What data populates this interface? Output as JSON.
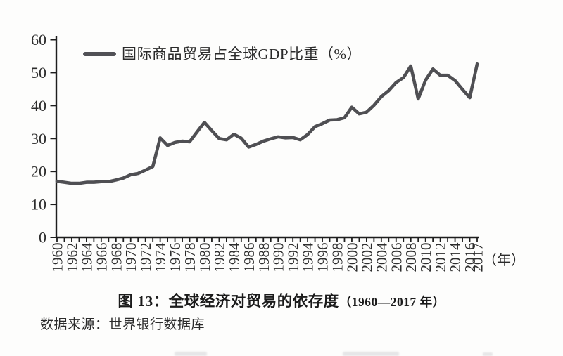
{
  "figure": {
    "legend_label": "国际商品贸易占全球GDP比重（%）",
    "x_axis_unit": "（年）",
    "caption_main": "图 13：全球经济对贸易的依存度",
    "caption_range": "（1960—2017 年）",
    "source": "数据来源：世界银行数据库"
  },
  "chart_data": {
    "type": "line",
    "title": "图 13：全球经济对贸易的依存度（1960—2017 年）",
    "series_name": "国际商品贸易占全球GDP比重（%）",
    "x": [
      1960,
      1961,
      1962,
      1963,
      1964,
      1965,
      1966,
      1967,
      1968,
      1969,
      1970,
      1971,
      1972,
      1973,
      1974,
      1975,
      1976,
      1977,
      1978,
      1979,
      1980,
      1981,
      1982,
      1983,
      1984,
      1985,
      1986,
      1987,
      1988,
      1989,
      1990,
      1991,
      1992,
      1993,
      1994,
      1995,
      1996,
      1997,
      1998,
      1999,
      2000,
      2001,
      2002,
      2003,
      2004,
      2005,
      2006,
      2007,
      2008,
      2009,
      2010,
      2011,
      2012,
      2013,
      2014,
      2015,
      2016,
      2017
    ],
    "values": [
      17.0,
      16.7,
      16.4,
      16.4,
      16.7,
      16.7,
      16.9,
      16.9,
      17.4,
      18.0,
      19.0,
      19.4,
      20.4,
      21.5,
      30.2,
      27.9,
      28.8,
      29.2,
      29.0,
      32.0,
      34.9,
      32.4,
      30.0,
      29.6,
      31.3,
      30.1,
      27.4,
      28.2,
      29.2,
      29.9,
      30.5,
      30.2,
      30.3,
      29.6,
      31.2,
      33.6,
      34.5,
      35.6,
      35.7,
      36.3,
      39.5,
      37.5,
      38.0,
      40.1,
      42.7,
      44.5,
      47.0,
      48.5,
      52.0,
      42.0,
      47.7,
      51.1,
      49.2,
      49.2,
      47.6,
      44.9,
      42.4,
      52.6
    ],
    "ylim": [
      0,
      60
    ],
    "yticks": [
      0,
      10,
      20,
      30,
      40,
      50,
      60
    ],
    "xtick_labels": [
      "1960",
      "1962",
      "1964",
      "1966",
      "1968",
      "1970",
      "1972",
      "1974",
      "1976",
      "1978",
      "1980",
      "1982",
      "1984",
      "1986",
      "1988",
      "1990",
      "1992",
      "1994",
      "1996",
      "1998",
      "2000",
      "2002",
      "2004",
      "2006",
      "2008",
      "2010",
      "2012",
      "2014",
      "2016",
      "2017"
    ],
    "xlabel": "（年）",
    "ylabel": "",
    "grid": false,
    "legend_position": "top-left",
    "colors": {
      "line": "#4f4f53",
      "axis": "#1e1e1e",
      "tick_text": "#2d2d2d"
    }
  }
}
